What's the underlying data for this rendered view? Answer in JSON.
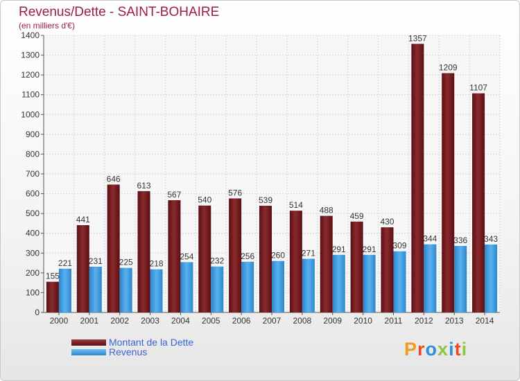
{
  "title": "Revenus/Dette - SAINT-BOHAIRE",
  "subtitle": "(en milliers d'€)",
  "logo": {
    "text": "Proxiti",
    "colors": [
      "#f39a1e",
      "#e8492c",
      "#2f8fd8",
      "#8dc63f",
      "#2f8fd8",
      "#e8492c",
      "#8dc63f"
    ]
  },
  "legend": [
    {
      "label": "Montant de la Dette",
      "color": "#7a1f23"
    },
    {
      "label": "Revenus",
      "color": "#3f9fe3"
    }
  ],
  "chart_data": {
    "type": "bar",
    "title": "Revenus/Dette - SAINT-BOHAIRE",
    "ylim": [
      0,
      1400
    ],
    "yticks": [
      0,
      100,
      200,
      300,
      400,
      500,
      600,
      700,
      800,
      900,
      1000,
      1100,
      1200,
      1300,
      1400
    ],
    "grid": true,
    "legend_position": "bottom-left",
    "categories": [
      "2000",
      "2001",
      "2002",
      "2003",
      "2004",
      "2005",
      "2006",
      "2007",
      "2008",
      "2009",
      "2010",
      "2011",
      "2012",
      "2013",
      "2014"
    ],
    "series": [
      {
        "name": "Montant de la Dette",
        "color": "#7a1f23",
        "values": [
          155,
          441,
          646,
          613,
          567,
          540,
          576,
          539,
          514,
          488,
          459,
          430,
          1357,
          1209,
          1107
        ]
      },
      {
        "name": "Revenus",
        "color": "#3f9fe3",
        "values": [
          221,
          231,
          225,
          218,
          254,
          232,
          256,
          260,
          271,
          291,
          291,
          309,
          344,
          336,
          343
        ]
      }
    ]
  }
}
